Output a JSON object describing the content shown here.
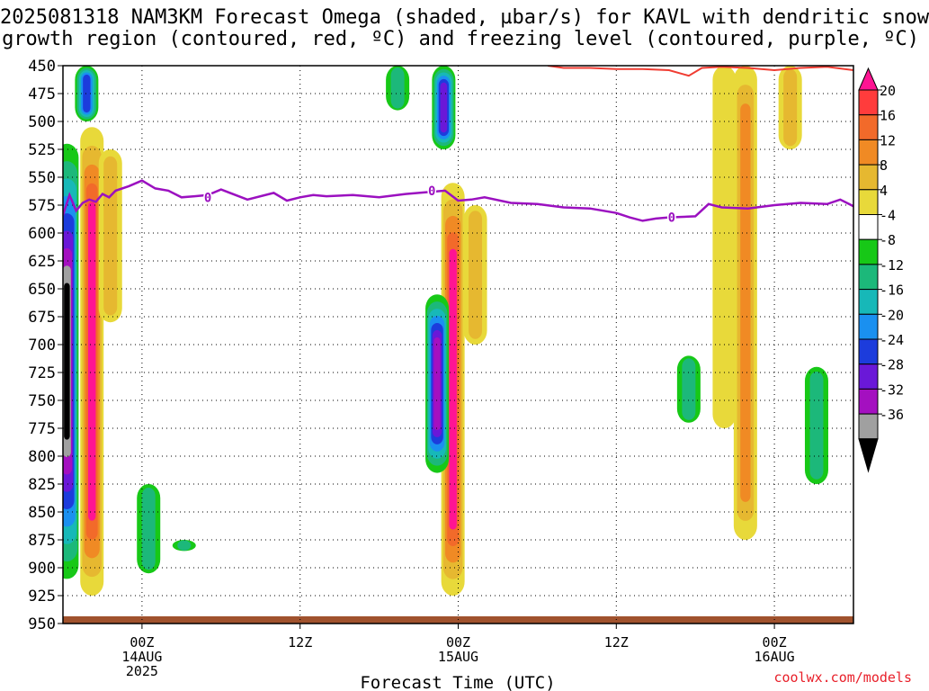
{
  "title_line1": "2025081318 NAM3KM Forecast Omega (shaded, µbar/s) for KAVL with dendritic snow",
  "title_line2": "growth region (contoured, red, ºC) and freezing level (contoured, purple, ºC)",
  "credit": "coolwx.com/models",
  "colors": {
    "background": "#ffffff",
    "grid": "#000000",
    "freezing_line": "#9b10c0",
    "dgz_line": "#f03c32",
    "ground": "#a0522d",
    "credit": "#e8202a"
  },
  "chart_data": {
    "type": "heatmap",
    "title": "2025081318 NAM3KM Forecast Omega (shaded, µbar/s) for KAVL with dendritic snow growth region (contoured, red, ºC) and freezing level (contoured, purple, ºC)",
    "xlabel": "Forecast Time (UTC)",
    "ylabel": "",
    "x_unit": "forecast hour from 2025-08-13 18Z",
    "xlim": [
      0,
      60
    ],
    "ylim": [
      950,
      450
    ],
    "y_reversed": true,
    "grid": true,
    "y_ticks": [
      450,
      475,
      500,
      525,
      550,
      575,
      600,
      625,
      650,
      675,
      700,
      725,
      750,
      775,
      800,
      825,
      850,
      875,
      900,
      925,
      950
    ],
    "x_ticks": [
      {
        "hour": 6,
        "lines": [
          "00Z",
          "14AUG",
          "2025"
        ]
      },
      {
        "hour": 18,
        "lines": [
          "12Z"
        ]
      },
      {
        "hour": 30,
        "lines": [
          "00Z",
          "15AUG"
        ]
      },
      {
        "hour": 42,
        "lines": [
          "12Z"
        ]
      },
      {
        "hour": 54,
        "lines": [
          "00Z",
          "16AUG"
        ]
      }
    ],
    "colorbar": {
      "labels": [
        "20",
        "16",
        "12",
        "8",
        "4",
        "-4",
        "-8",
        "-12",
        "-16",
        "-20",
        "-24",
        "-28",
        "-32",
        "-36"
      ],
      "levels": [
        20,
        16,
        12,
        8,
        4,
        -4,
        -8,
        -12,
        -16,
        -20,
        -24,
        -28,
        -32,
        -36
      ],
      "bins": [
        {
          "color": "#ff1493"
        },
        {
          "color": "#ff3c3c"
        },
        {
          "color": "#f26a2a"
        },
        {
          "color": "#f08a24"
        },
        {
          "color": "#e6b830"
        },
        {
          "color": "#e8d93a"
        },
        {
          "color": "#ffffff"
        },
        {
          "color": "#17c817"
        },
        {
          "color": "#1cb87a"
        },
        {
          "color": "#17b8b8"
        },
        {
          "color": "#1a90f0"
        },
        {
          "color": "#1c3cdc"
        },
        {
          "color": "#6a18d8"
        },
        {
          "color": "#a410c0"
        },
        {
          "color": "#a0a0a0"
        },
        {
          "color": "#000000"
        }
      ]
    },
    "freezing_level": {
      "label": "0",
      "hours": [
        0,
        0.5,
        1,
        1.5,
        2,
        2.5,
        3,
        3.5,
        4,
        5,
        6,
        7,
        8,
        9,
        10,
        11,
        12,
        14,
        16,
        17,
        18,
        19,
        20,
        22,
        24,
        26,
        28,
        29,
        30,
        31,
        32,
        34,
        36,
        38,
        40,
        42,
        43,
        44,
        45,
        46,
        48,
        49,
        50,
        52,
        54,
        56,
        58,
        59,
        60
      ],
      "pressure": [
        584,
        566,
        580,
        573,
        570,
        572,
        565,
        568,
        562,
        558,
        553,
        560,
        562,
        568,
        567,
        566,
        561,
        570,
        564,
        571,
        568,
        566,
        567,
        566,
        568,
        565,
        563,
        562,
        571,
        570,
        568,
        573,
        574,
        577,
        578,
        582,
        586,
        589,
        587,
        586,
        585,
        574,
        577,
        578,
        575,
        573,
        574,
        570,
        576
      ]
    },
    "dgz_contour": {
      "hours": [
        36.8,
        38,
        40,
        42,
        44,
        46,
        47.5,
        48.5,
        50,
        52,
        54,
        56,
        58,
        60
      ],
      "pressure": [
        450,
        452,
        452,
        453,
        453,
        454,
        459,
        452,
        451,
        452,
        454,
        452,
        451,
        454
      ]
    },
    "omega_features": [
      {
        "hour": 2.2,
        "top": 505,
        "bottom": 925,
        "value": 24
      },
      {
        "hour": 3.6,
        "top": 525,
        "bottom": 680,
        "value": 8
      },
      {
        "hour": 0.3,
        "top": 520,
        "bottom": 910,
        "value": -36
      },
      {
        "hour": 1.8,
        "top": 450,
        "bottom": 500,
        "value": -20
      },
      {
        "hour": 6.5,
        "top": 825,
        "bottom": 905,
        "value": -8
      },
      {
        "hour": 9.2,
        "top": 875,
        "bottom": 885,
        "value": -8
      },
      {
        "hour": 29.6,
        "top": 555,
        "bottom": 925,
        "value": 24
      },
      {
        "hour": 28.4,
        "top": 655,
        "bottom": 815,
        "value": -28
      },
      {
        "hour": 28.9,
        "top": 450,
        "bottom": 525,
        "value": -24
      },
      {
        "hour": 31.3,
        "top": 575,
        "bottom": 700,
        "value": 8
      },
      {
        "hour": 25.4,
        "top": 450,
        "bottom": 490,
        "value": -8
      },
      {
        "hour": 51.8,
        "top": 450,
        "bottom": 875,
        "value": 12
      },
      {
        "hour": 50.2,
        "top": 450,
        "bottom": 775,
        "value": 6
      },
      {
        "hour": 55.2,
        "top": 450,
        "bottom": 525,
        "value": 8
      },
      {
        "hour": 47.5,
        "top": 710,
        "bottom": 770,
        "value": -8
      },
      {
        "hour": 57.2,
        "top": 720,
        "bottom": 825,
        "value": -8
      }
    ]
  }
}
